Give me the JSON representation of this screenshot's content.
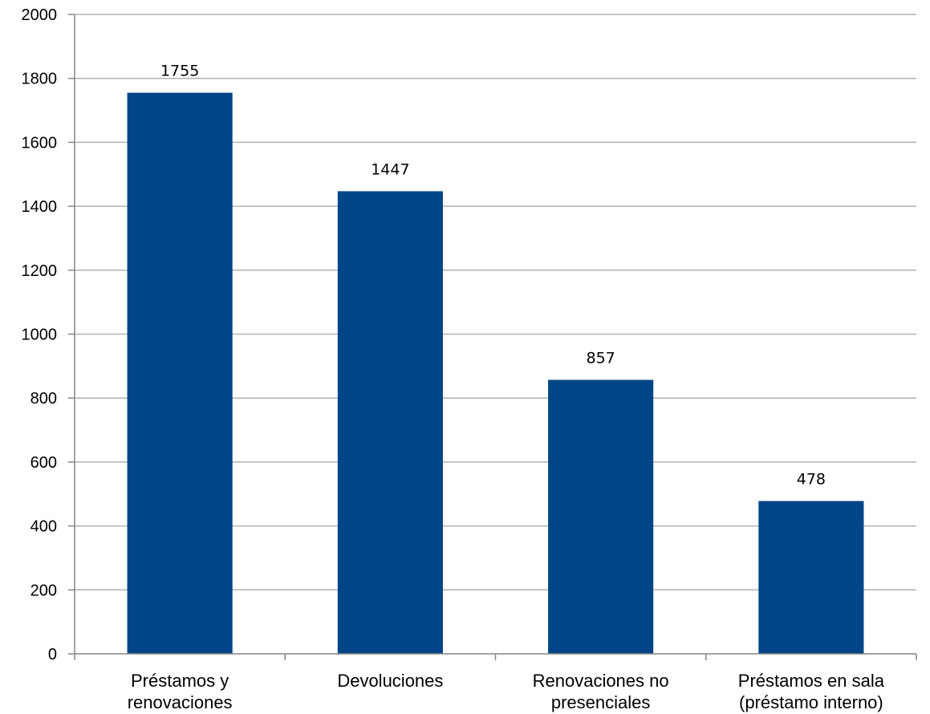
{
  "colors": {
    "bar": "#004586",
    "grid": "#b3b3b3",
    "axis": "#868686"
  },
  "chart_data": {
    "type": "bar",
    "categories": [
      [
        "Préstamos y",
        "renovaciones"
      ],
      [
        "Devoluciones"
      ],
      [
        "Renovaciones no",
        "presenciales"
      ],
      [
        "Préstamos en sala",
        "(préstamo interno)"
      ]
    ],
    "values": [
      1755,
      1447,
      857,
      478
    ],
    "data_labels": [
      "1755",
      "1447",
      "857",
      "478"
    ],
    "yticks": [
      "0",
      "200",
      "400",
      "600",
      "800",
      "1000",
      "1200",
      "1400",
      "1600",
      "1800",
      "2000"
    ],
    "ylim": [
      0,
      2000
    ],
    "title": "",
    "xlabel": "",
    "ylabel": "",
    "grid": true,
    "legend": "none"
  }
}
